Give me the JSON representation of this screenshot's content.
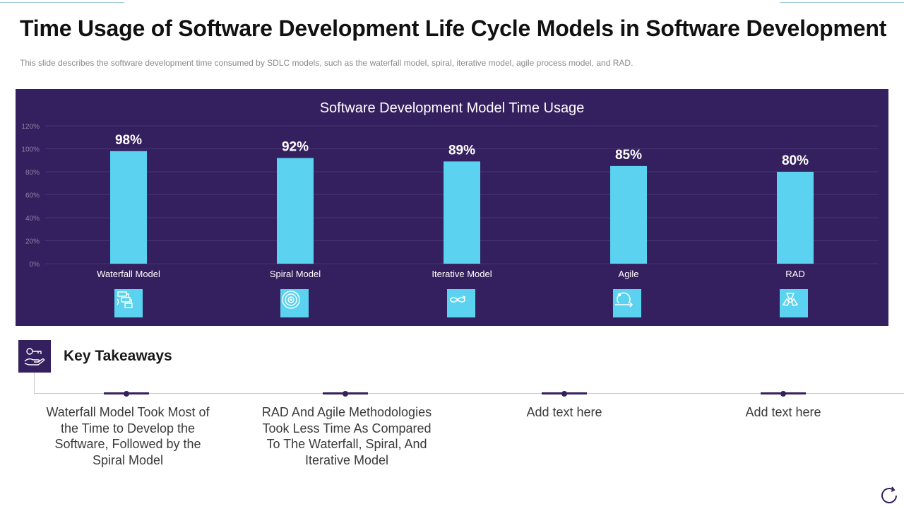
{
  "page": {
    "title": "Time Usage of Software Development Life Cycle Models in Software Development",
    "subtitle": "This slide describes the software development  time consumed by SDLC models, such as the waterfall model, spiral, iterative  model, agile process model, and RAD."
  },
  "chart_data": {
    "type": "bar",
    "title": "Software Development  Model Time Usage",
    "categories": [
      "Waterfall Model",
      "Spiral Model",
      "Iterative Model",
      "Agile",
      "RAD"
    ],
    "values": [
      98,
      92,
      89,
      85,
      80
    ],
    "data_labels": [
      "98%",
      "92%",
      "89%",
      "85%",
      "80%"
    ],
    "yticks": [
      "0%",
      "20%",
      "40%",
      "60%",
      "80%",
      "100%",
      "120%"
    ],
    "ylim": [
      0,
      120
    ],
    "xlabel": "",
    "ylabel": "",
    "grid": true,
    "bar_color": "#5bd2f0",
    "background_color": "#34205e",
    "category_icons": [
      "waterfall-icon",
      "spiral-icon",
      "iterative-loop-icon",
      "agile-cycle-icon",
      "rad-icon"
    ]
  },
  "takeaways": {
    "title": "Key Takeaways",
    "icon": "hand-key-icon",
    "items": [
      "Waterfall Model Took Most of the Time to Develop the Software, Followed by the Spiral Model",
      "RAD And Agile Methodologies Took Less Time As Compared To The Waterfall, Spiral, And Iterative Model",
      "Add text here",
      "Add text here"
    ]
  },
  "colors": {
    "accent": "#34205e",
    "bar": "#5bd2f0"
  }
}
